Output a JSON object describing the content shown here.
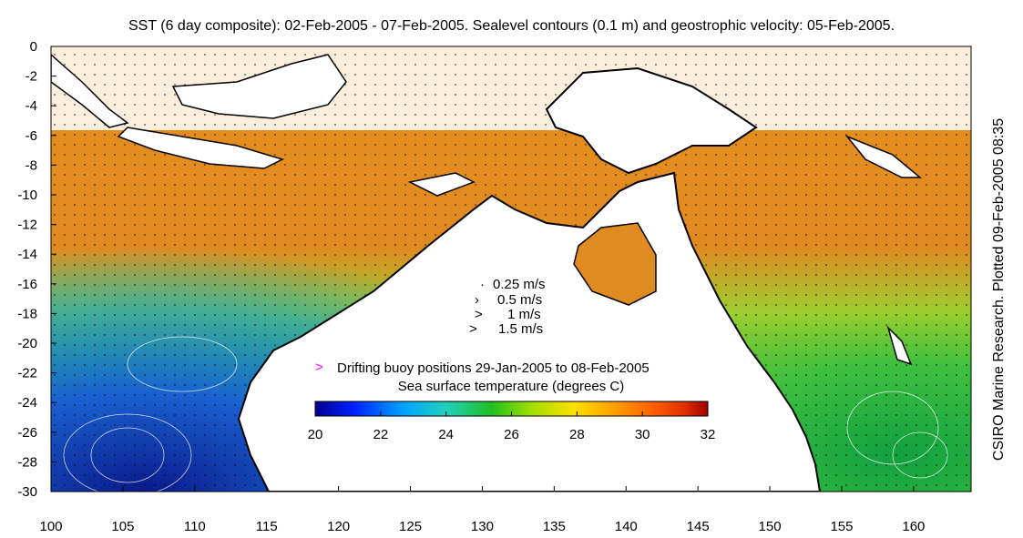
{
  "title": "SST (6 day composite): 02-Feb-2005 - 07-Feb-2005. Sealevel contours (0.1 m) and geostrophic velocity: 05-Feb-2005.",
  "side_label": "CSIRO Marine Research. Plotted 09-Feb-2005 08:35",
  "axes": {
    "x_ticks": [
      "100",
      "105",
      "110",
      "115",
      "120",
      "125",
      "130",
      "135",
      "140",
      "145",
      "150",
      "155",
      "160"
    ],
    "y_ticks": [
      "0",
      "-2",
      "-4",
      "-6",
      "-8",
      "-10",
      "-12",
      "-14",
      "-16",
      "-18",
      "-20",
      "-22",
      "-24",
      "-26",
      "-28",
      "-30"
    ],
    "x_range": [
      100,
      164
    ],
    "y_range": [
      -30,
      0
    ]
  },
  "velocity_legend": {
    "items": [
      {
        "glyph": "·",
        "label": "0.25 m/s"
      },
      {
        "glyph": "›",
        "label": "0.5 m/s"
      },
      {
        "glyph": ">",
        "label": "1 m/s"
      },
      {
        "glyph": ">",
        "label": "1.5 m/s"
      }
    ]
  },
  "buoy_legend": {
    "glyph": ">",
    "label": "Drifting buoy positions 29-Jan-2005 to 08-Feb-2005",
    "color": "#ff00ff"
  },
  "colorbar": {
    "title": "Sea surface temperature (degrees C)",
    "ticks": [
      "20",
      "22",
      "24",
      "26",
      "28",
      "30",
      "32"
    ],
    "range": [
      20,
      32
    ],
    "colors": [
      "#00008f",
      "#0020ff",
      "#00a0ff",
      "#20d0c0",
      "#20c020",
      "#a0e000",
      "#ffe000",
      "#ffa000",
      "#ff6000",
      "#e03000",
      "#a00000"
    ]
  },
  "colors": {
    "land": "#ffffff",
    "coastline": "#000000",
    "warm_sea": "#e88a20",
    "cool_sea": "#1a8a3a",
    "cold_sea": "#1a4ab0"
  }
}
